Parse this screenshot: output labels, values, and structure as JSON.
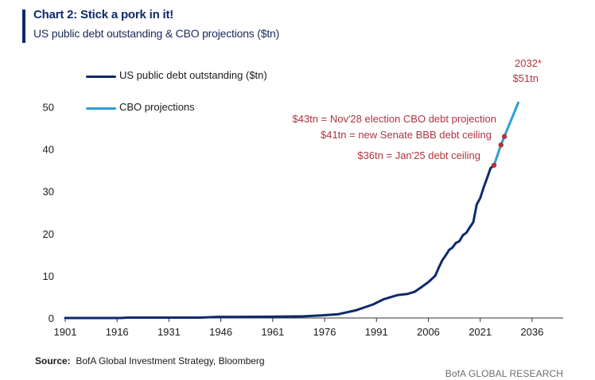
{
  "header": {
    "title": "Chart 2: Stick a pork in it!",
    "subtitle": "US public debt outstanding & CBO projections ($tn)"
  },
  "footer": {
    "source_label": "Source:",
    "source_text": "BofA Global Investment Strategy, Bloomberg",
    "credit": "BofA GLOBAL RESEARCH"
  },
  "colors": {
    "history": "#0d2a6b",
    "projection": "#2b9fd6",
    "annotation": "#b0343c",
    "axis": "#333333"
  },
  "chart_data": {
    "type": "line",
    "title": "Chart 2: Stick a pork in it!",
    "subtitle": "US public debt outstanding & CBO projections ($tn)",
    "xlabel": "",
    "ylabel": "",
    "xlim": [
      1901,
      2045
    ],
    "ylim": [
      0,
      55
    ],
    "x_ticks": [
      1901,
      1916,
      1931,
      1946,
      1961,
      1976,
      1991,
      2006,
      2021,
      2036
    ],
    "y_ticks": [
      0,
      10,
      20,
      30,
      40,
      50
    ],
    "grid": false,
    "legend_position": "top-left",
    "series": [
      {
        "name": "US public debt outstanding ($tn)",
        "color": "#0d2a6b",
        "x": [
          1901,
          1910,
          1917,
          1919,
          1930,
          1940,
          1945,
          1950,
          1960,
          1970,
          1975,
          1980,
          1985,
          1990,
          1993,
          1997,
          2000,
          2002,
          2004,
          2006,
          2008,
          2009,
          2010,
          2011,
          2012,
          2013,
          2014,
          2015,
          2016,
          2017,
          2018,
          2019,
          2020,
          2021,
          2022,
          2023,
          2024,
          2025
        ],
        "y": [
          0.0,
          0.0,
          0.0,
          0.1,
          0.1,
          0.1,
          0.26,
          0.26,
          0.3,
          0.4,
          0.6,
          0.9,
          1.8,
          3.2,
          4.4,
          5.4,
          5.7,
          6.2,
          7.3,
          8.5,
          10.0,
          11.9,
          13.6,
          14.8,
          16.1,
          16.7,
          17.8,
          18.2,
          19.6,
          20.2,
          21.5,
          22.7,
          26.9,
          28.4,
          30.9,
          33.2,
          35.5,
          36.2
        ],
        "role": "history"
      },
      {
        "name": "CBO projections",
        "color": "#2b9fd6",
        "x": [
          2025,
          2026,
          2027,
          2028,
          2029,
          2030,
          2031,
          2032
        ],
        "y": [
          36.2,
          38.6,
          41.0,
          43.0,
          45.0,
          47.0,
          49.0,
          51.0
        ],
        "role": "projection"
      }
    ],
    "annotations": [
      {
        "text": "2032*",
        "x": 2032,
        "y": 51
      },
      {
        "text": "$51tn",
        "x": 2032,
        "y": 51
      },
      {
        "text": "$43tn = Nov'28 election CBO debt projection",
        "x": 2028,
        "y": 43
      },
      {
        "text": "$41tn = new Senate BBB debt ceiling",
        "x": 2027,
        "y": 41
      },
      {
        "text": "$36tn = Jan'25 debt ceiling",
        "x": 2025,
        "y": 36
      }
    ]
  }
}
